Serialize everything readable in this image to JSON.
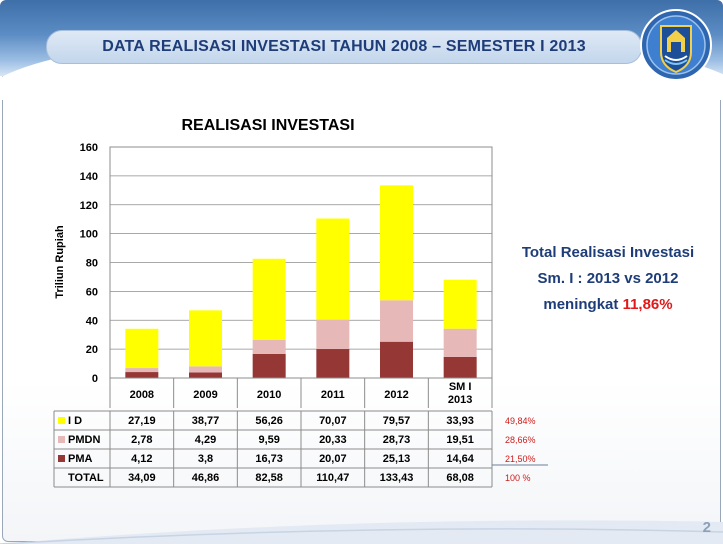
{
  "slide": {
    "title": "DATA REALISASI INVESTASI TAHUN 2008 – SEMESTER I 2013",
    "page_number": "2"
  },
  "callout": {
    "line1": "Total Realisasi Investasi",
    "line2": "Sm. I : 2013 vs 2012",
    "line3_prefix": "meningkat ",
    "line3_value": "11,86%"
  },
  "colors": {
    "id": "#ffff00",
    "pmdn": "#e6b9b8",
    "pma": "#953735",
    "header": "#1e3d78",
    "highlight": "#e01818"
  },
  "chart_data": {
    "type": "bar",
    "stacked": true,
    "title": "REALISASI INVESTASI",
    "ylabel": "Triliun Rupiah",
    "ylim": [
      0,
      160
    ],
    "yticks": [
      0,
      20,
      40,
      60,
      80,
      100,
      120,
      140,
      160
    ],
    "ytick_labels": [
      "0",
      "20",
      "40",
      "60",
      "80",
      "100",
      "120",
      "140",
      "160"
    ],
    "grid": true,
    "categories": [
      "2008",
      "2009",
      "2010",
      "2011",
      "2012",
      "SM I 2013"
    ],
    "series": [
      {
        "name": "PMA",
        "color": "#953735",
        "values": [
          4.12,
          3.8,
          16.73,
          20.07,
          25.13,
          14.64
        ],
        "labels": [
          "4,12",
          "3,8",
          "16,73",
          "20,07",
          "25,13",
          "14,64"
        ]
      },
      {
        "name": "PMDN",
        "color": "#e6b9b8",
        "values": [
          2.78,
          4.29,
          9.59,
          20.33,
          28.73,
          19.51
        ],
        "labels": [
          "2,78",
          "4,29",
          "9,59",
          "20,33",
          "28,73",
          "19,51"
        ]
      },
      {
        "name": "I D",
        "color": "#ffff00",
        "values": [
          27.19,
          38.77,
          56.26,
          70.07,
          79.57,
          33.93
        ],
        "labels": [
          "27,19",
          "38,77",
          "56,26",
          "70,07",
          "79,57",
          "33,93"
        ]
      }
    ],
    "table": {
      "rows": [
        {
          "label": "I D",
          "series": "I D",
          "share": "49,84%"
        },
        {
          "label": "PMDN",
          "series": "PMDN",
          "share": "28,66%"
        },
        {
          "label": "PMA",
          "series": "PMA",
          "share": "21,50%"
        },
        {
          "label": "TOTAL",
          "series": null,
          "share": "100 %",
          "labels": [
            "34,09",
            "46,86",
            "82,58",
            "110,47",
            "133,43",
            "68,08"
          ]
        }
      ]
    }
  }
}
